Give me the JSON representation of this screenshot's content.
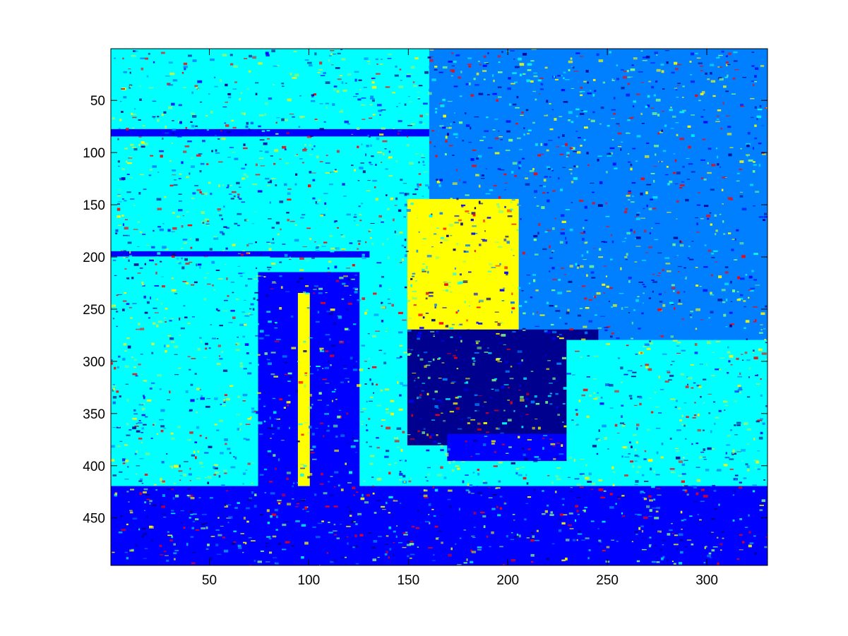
{
  "chart_data": {
    "type": "heatmap",
    "title": "",
    "xlabel": "",
    "ylabel": "",
    "colormap": "jet",
    "colormap_colors": [
      "#00008f",
      "#0000ff",
      "#0080ff",
      "#00ffff",
      "#80ff80",
      "#ffff00",
      "#ff8000",
      "#ff0000",
      "#800000"
    ],
    "background_color": "#ffffff",
    "axis_color": "#000000",
    "image_size": {
      "columns": 330,
      "rows": 495
    },
    "xlim": [
      0.5,
      330.5
    ],
    "ylim": [
      0.5,
      495.5
    ],
    "y_reversed": true,
    "grid": false,
    "x_ticks": [
      {
        "value": 50,
        "label": "50"
      },
      {
        "value": 100,
        "label": "100"
      },
      {
        "value": 150,
        "label": "150"
      },
      {
        "value": 200,
        "label": "200"
      },
      {
        "value": 250,
        "label": "250"
      },
      {
        "value": 300,
        "label": "300"
      }
    ],
    "y_ticks": [
      {
        "value": 50,
        "label": "50"
      },
      {
        "value": 100,
        "label": "100"
      },
      {
        "value": 150,
        "label": "150"
      },
      {
        "value": 200,
        "label": "200"
      },
      {
        "value": 250,
        "label": "250"
      },
      {
        "value": 300,
        "label": "300"
      },
      {
        "value": 350,
        "label": "350"
      },
      {
        "value": 400,
        "label": "400"
      },
      {
        "value": 450,
        "label": "450"
      }
    ],
    "regions": [
      {
        "name": "sky-background",
        "x": [
          160,
          330
        ],
        "y": [
          1,
          330
        ],
        "level": 2
      },
      {
        "name": "upper-left-textured-background",
        "x": [
          1,
          160
        ],
        "y": [
          1,
          200
        ],
        "level": 3
      },
      {
        "name": "horizontal-rail-top",
        "x": [
          1,
          160
        ],
        "y": [
          78,
          84
        ],
        "level": 1
      },
      {
        "name": "horizontal-rail-middle",
        "x": [
          1,
          130
        ],
        "y": [
          195,
          200
        ],
        "level": 1
      },
      {
        "name": "left-midground",
        "x": [
          1,
          80
        ],
        "y": [
          200,
          420
        ],
        "level": 3
      },
      {
        "name": "pillar-obstacle",
        "x": [
          75,
          125
        ],
        "y": [
          215,
          420
        ],
        "level": 1
      },
      {
        "name": "pillar-highlight-stripe",
        "x": [
          95,
          100
        ],
        "y": [
          235,
          420
        ],
        "level": 5
      },
      {
        "name": "skater-shirt",
        "x": [
          150,
          205
        ],
        "y": [
          145,
          275
        ],
        "level": 5
      },
      {
        "name": "skater-legs",
        "x": [
          150,
          245
        ],
        "y": [
          270,
          380
        ],
        "level": 0
      },
      {
        "name": "skateboard",
        "x": [
          170,
          250
        ],
        "y": [
          370,
          395
        ],
        "level": 1
      },
      {
        "name": "right-midground",
        "x": [
          230,
          330
        ],
        "y": [
          280,
          420
        ],
        "level": 3
      },
      {
        "name": "ground",
        "x": [
          1,
          330
        ],
        "y": [
          420,
          495
        ],
        "level": 1
      }
    ]
  }
}
